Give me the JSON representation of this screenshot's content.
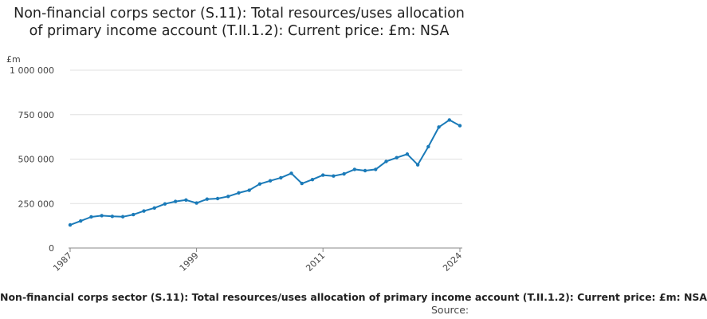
{
  "chart_data": {
    "type": "line",
    "title": "Non-financial corps sector (S.11): Total resources/uses allocation of primary income account (T.II.1.2): Current price: £m: NSA",
    "ylabel": "£m",
    "xlabel": "",
    "ylim": [
      0,
      1000000
    ],
    "yticks": [
      0,
      250000,
      500000,
      750000,
      1000000
    ],
    "ytick_labels": [
      "0",
      "250 000",
      "500 000",
      "750 000",
      "1 000 000"
    ],
    "xticks": [
      1987,
      1999,
      2011,
      2024
    ],
    "xtick_labels": [
      "1987",
      "1999",
      "2011",
      "2024"
    ],
    "grid": true,
    "legend": "bottom",
    "series": [
      {
        "name": "Non-financial corps sector (S.11): Total resources/uses allocation of primary income account (T.II.1.2): Current price: £m: NSA",
        "color": "#1a7ab8",
        "x": [
          1987,
          1988,
          1989,
          1990,
          1991,
          1992,
          1993,
          1994,
          1995,
          1996,
          1997,
          1998,
          1999,
          2000,
          2001,
          2002,
          2003,
          2004,
          2005,
          2006,
          2007,
          2008,
          2009,
          2010,
          2011,
          2012,
          2013,
          2014,
          2015,
          2016,
          2017,
          2018,
          2019,
          2020,
          2021,
          2022,
          2023,
          2024
        ],
        "values": [
          130000,
          152000,
          175000,
          182000,
          178000,
          176000,
          188000,
          208000,
          225000,
          248000,
          262000,
          270000,
          253000,
          275000,
          278000,
          290000,
          310000,
          325000,
          360000,
          378000,
          395000,
          420000,
          363000,
          385000,
          410000,
          405000,
          417000,
          442000,
          435000,
          442000,
          487000,
          508000,
          528000,
          468000,
          570000,
          680000,
          720000,
          688000
        ]
      }
    ]
  },
  "legend": {
    "label": "Non-financial corps sector (S.11): Total resources/uses allocation of primary income account (T.II.1.2): Current price: £m: NSA"
  },
  "source": {
    "label": "Source:"
  },
  "colors": {
    "line": "#1a7ab8",
    "grid": "#e0e0e0",
    "axis": "#888888"
  }
}
